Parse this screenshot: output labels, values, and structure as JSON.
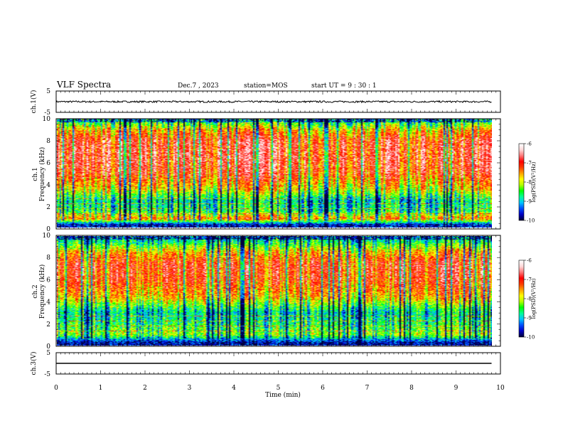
{
  "header": {
    "title": "VLF Spectra",
    "date": "Dec.7 , 2023",
    "station": "station=MOS",
    "start": "start UT =  9 : 30 : 1"
  },
  "colors": {
    "scale": [
      "#00003c",
      "#0000c8",
      "#0050ff",
      "#00c8ff",
      "#00ff96",
      "#00ff00",
      "#b4ff00",
      "#ffff00",
      "#ffa000",
      "#ff3c00",
      "#ff0000",
      "#ff7878",
      "#ffd8d8",
      "#ffffff"
    ]
  },
  "chart_data": [
    {
      "type": "line",
      "name": "ch1 waveform",
      "ylabel": "ch.1(V)",
      "ylim": [
        -5,
        5
      ],
      "yticks": [
        "5",
        "-5"
      ],
      "xlim": [
        0,
        10
      ],
      "trace_level": 0,
      "trace_amplitude": 0.4,
      "x_end": 9.8
    },
    {
      "type": "heatmap",
      "name": "ch1 spectrogram",
      "ylabel": "ch.1\nFrequency (kHz)",
      "ylim": [
        0,
        10
      ],
      "yticks": [
        "0",
        "2",
        "4",
        "6",
        "8",
        "10"
      ],
      "xlim": [
        0,
        9.8
      ],
      "colorbar": {
        "label": "log(PSD)(V²/Hz)",
        "range": [
          -10,
          -6
        ],
        "ticks": [
          "-6",
          "-7",
          "-8",
          "-9",
          "-10"
        ]
      },
      "profile": [
        {
          "f": 0.25,
          "v": -9.6
        },
        {
          "f": 0.8,
          "v": -7.4
        },
        {
          "f": 1.5,
          "v": -8.6
        },
        {
          "f": 2.5,
          "v": -8.8
        },
        {
          "f": 3.5,
          "v": -7.8
        },
        {
          "f": 5.0,
          "v": -7.0
        },
        {
          "f": 6.5,
          "v": -6.8
        },
        {
          "f": 8.0,
          "v": -6.9
        },
        {
          "f": 9.0,
          "v": -7.6
        },
        {
          "f": 9.6,
          "v": -8.4
        }
      ]
    },
    {
      "type": "heatmap",
      "name": "ch2 spectrogram",
      "ylabel": "ch.2\nFrequency (kHz)",
      "ylim": [
        0,
        10
      ],
      "yticks": [
        "0",
        "2",
        "4",
        "6",
        "8",
        "10"
      ],
      "xlim": [
        0,
        9.8
      ],
      "colorbar": {
        "label": "log(PSD)(V²/Hz)",
        "range": [
          -10,
          -6
        ],
        "ticks": [
          "-6",
          "-7",
          "-8",
          "-9",
          "-10"
        ]
      },
      "profile": [
        {
          "f": 0.25,
          "v": -9.7
        },
        {
          "f": 1.0,
          "v": -8.2
        },
        {
          "f": 2.0,
          "v": -8.6
        },
        {
          "f": 3.0,
          "v": -8.9
        },
        {
          "f": 4.5,
          "v": -7.6
        },
        {
          "f": 6.0,
          "v": -7.1
        },
        {
          "f": 7.5,
          "v": -7.0
        },
        {
          "f": 8.5,
          "v": -7.6
        },
        {
          "f": 9.6,
          "v": -8.8
        }
      ]
    },
    {
      "type": "line",
      "name": "ch3 waveform",
      "ylabel": "ch.3(V)",
      "ylim": [
        -5,
        5
      ],
      "yticks": [
        "5",
        "-5"
      ],
      "xlim": [
        0,
        10
      ],
      "trace_level": 0,
      "trace_amplitude": 0.0,
      "x_end": 9.8,
      "xlabel": "Time (min)",
      "xticks": [
        "0",
        "1",
        "2",
        "3",
        "4",
        "5",
        "6",
        "7",
        "8",
        "9",
        "10"
      ]
    }
  ]
}
